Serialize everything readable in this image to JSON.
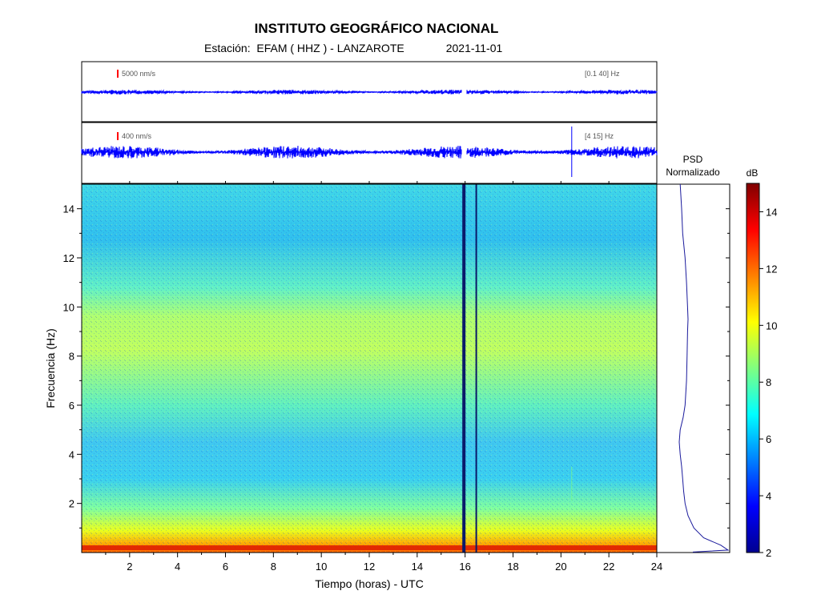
{
  "header": {
    "title": "INSTITUTO GEOGRÁFICO NACIONAL",
    "station_prefix": "Estación:",
    "station": "EFAM ( HHZ ) - LANZAROTE",
    "date": "2021-11-01"
  },
  "traces": [
    {
      "scale_label": "5000 nm/s",
      "band_label": "[0.1 40]  Hz",
      "color": "#0000ff"
    },
    {
      "scale_label": "400 nm/s",
      "band_label": "[4 15]  Hz",
      "color": "#0000ff"
    }
  ],
  "colors": {
    "trace": "#0000ff",
    "psd_line": "#1a1a9c",
    "scale_marker": "#ff0000"
  },
  "chart_data": {
    "type": "heatmap",
    "xlabel": "Tiempo (horas) - UTC",
    "ylabel": "Frecuencia  (Hz)",
    "xlim": [
      0,
      24
    ],
    "ylim": [
      0,
      15
    ],
    "x_ticks": [
      "2",
      "4",
      "6",
      "8",
      "10",
      "12",
      "14",
      "16",
      "18",
      "20",
      "22",
      "24"
    ],
    "y_ticks": [
      "2",
      "4",
      "6",
      "8",
      "10",
      "12",
      "14"
    ],
    "colorbar": {
      "label": "dB",
      "range": [
        2,
        15
      ],
      "ticks": [
        "2",
        "4",
        "6",
        "8",
        "10",
        "12",
        "14"
      ],
      "colormap": [
        "#00008f",
        "#0000ff",
        "#0080ff",
        "#00ffff",
        "#80ff80",
        "#ffff00",
        "#ff8000",
        "#ff0000",
        "#800000"
      ]
    },
    "psd": {
      "title_line1": "PSD",
      "title_line2": "Normalizado",
      "frequency_hz": [
        15,
        14,
        13,
        12,
        11,
        10,
        9.5,
        9,
        8,
        7,
        6,
        5.5,
        5,
        4.5,
        4,
        3.5,
        3,
        2.5,
        2,
        1.5,
        1,
        0.6,
        0.3,
        0.1
      ],
      "level": [
        0.02,
        0.05,
        0.07,
        0.12,
        0.15,
        0.17,
        0.18,
        0.17,
        0.16,
        0.15,
        0.12,
        0.08,
        0.02,
        0.0,
        0.02,
        0.05,
        0.07,
        0.09,
        0.12,
        0.18,
        0.3,
        0.5,
        0.85,
        1.0
      ]
    },
    "data_gaps_hours": [
      15.95,
      16.5
    ],
    "transient_event_hour": 20.45
  }
}
